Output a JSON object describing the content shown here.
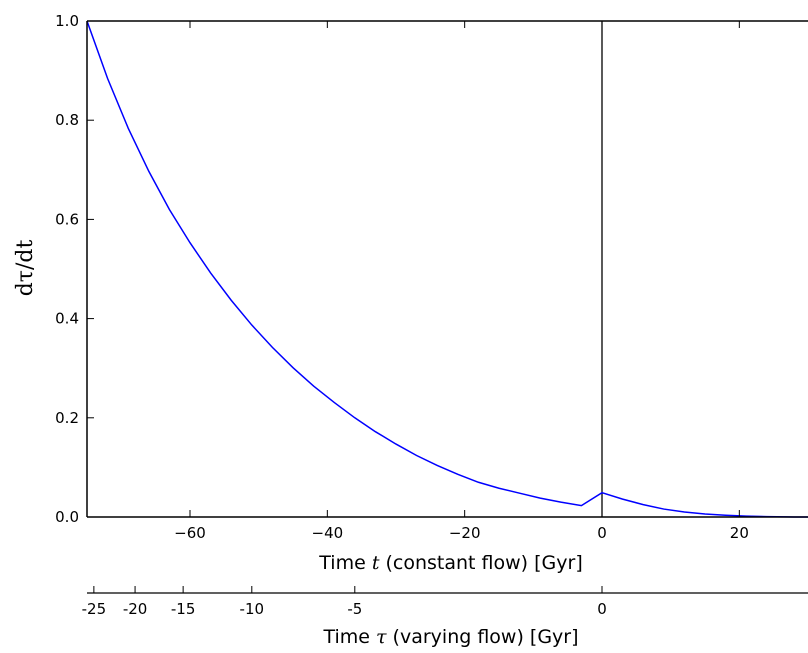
{
  "chart_data": {
    "type": "line",
    "xlabel_prefix": "Time ",
    "xlabel_symbol": "t",
    "xlabel_suffix": " (constant flow) [Gyr]",
    "ylabel": "dτ/dt",
    "xlim": [
      -75,
      30
    ],
    "ylim": [
      0.0,
      1.0
    ],
    "x_ticks": [
      -60,
      -40,
      -20,
      0,
      20
    ],
    "x_tick_labels": [
      "−60",
      "−40",
      "−20",
      "0",
      "20"
    ],
    "y_ticks": [
      0.0,
      0.2,
      0.4,
      0.6,
      0.8,
      1.0
    ],
    "y_tick_labels": [
      "0.0",
      "0.2",
      "0.4",
      "0.6",
      "0.8",
      "1.0"
    ],
    "vertical_line_x": 0,
    "line_color": "#0000ff",
    "series": [
      {
        "x": [
          -75,
          -72,
          -69,
          -66,
          -63,
          -60,
          -57,
          -54,
          -51,
          -48,
          -45,
          -42,
          -39,
          -36,
          -33,
          -30,
          -27,
          -24,
          -21,
          -18,
          -15,
          -12,
          -9,
          -6,
          -3,
          0,
          3,
          6,
          9,
          12,
          15,
          18,
          21,
          24,
          27,
          28,
          30
        ],
        "y": [
          1.0,
          0.884,
          0.784,
          0.697,
          0.62,
          0.553,
          0.492,
          0.437,
          0.387,
          0.342,
          0.301,
          0.264,
          0.231,
          0.2,
          0.172,
          0.147,
          0.124,
          0.104,
          0.086,
          0.07,
          0.058,
          0.048,
          0.038,
          0.03,
          0.023,
          0.049,
          0.036,
          0.025,
          0.016,
          0.01,
          0.006,
          0.0035,
          0.0018,
          0.0008,
          0.0002,
          0.0001,
          0.0
        ]
      }
    ],
    "secondary_axis": {
      "label_prefix": "Time ",
      "label_symbol": "τ",
      "label_suffix": " (varying flow) [Gyr]",
      "tick_labels": [
        "-25",
        "-20",
        "-15",
        "-10",
        "-5",
        "0"
      ],
      "tick_positions_t": [
        -74,
        -68,
        -61,
        -51,
        -36,
        0
      ]
    }
  }
}
